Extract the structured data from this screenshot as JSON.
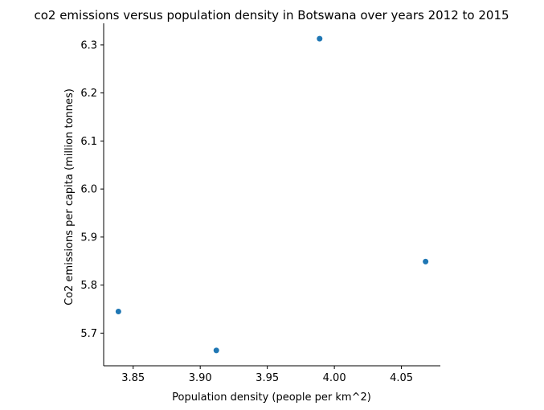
{
  "chart_data": {
    "type": "scatter",
    "title": "co2 emissions versus population density in Botswana over years 2012 to 2015",
    "xlabel": "Population density (people per km^2)",
    "ylabel": "Co2 emissions per capita (million tonnes)",
    "xlim": [
      3.828,
      4.079
    ],
    "ylim": [
      5.632,
      6.345
    ],
    "xticks": [
      3.85,
      3.9,
      3.95,
      4.0,
      4.05
    ],
    "xtick_labels": [
      "3.85",
      "3.90",
      "3.95",
      "4.00",
      "4.05"
    ],
    "yticks": [
      5.7,
      5.8,
      5.9,
      6.0,
      6.1,
      6.2,
      6.3
    ],
    "ytick_labels": [
      "5.7",
      "5.8",
      "5.9",
      "6.0",
      "6.1",
      "6.2",
      "6.3"
    ],
    "grid": false,
    "marker_color": "#1f77b4",
    "points": [
      {
        "x": 3.839,
        "y": 5.745
      },
      {
        "x": 3.912,
        "y": 5.664
      },
      {
        "x": 3.989,
        "y": 6.313
      },
      {
        "x": 4.068,
        "y": 5.849
      }
    ]
  }
}
